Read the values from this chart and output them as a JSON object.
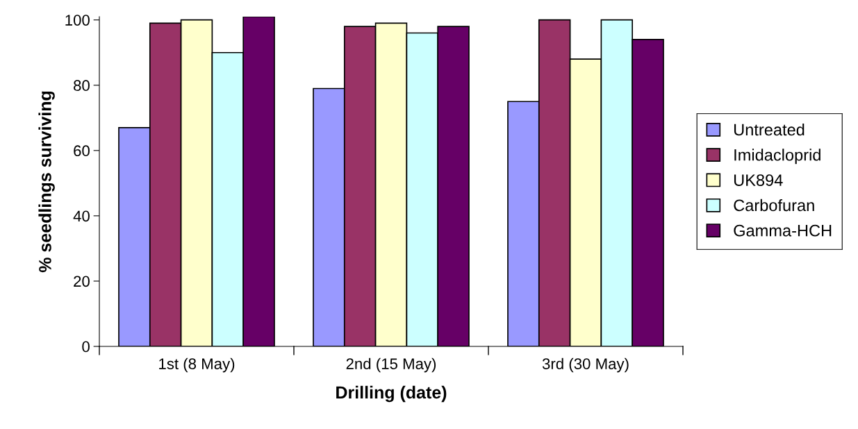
{
  "chart_data": {
    "type": "bar",
    "xlabel": "Drilling (date)",
    "ylabel": "% seedlings surviving",
    "categories": [
      "1st (8 May)",
      "2nd (15 May)",
      "3rd (30 May)"
    ],
    "series": [
      {
        "name": "Untreated",
        "color": "#9999ff",
        "values": [
          67,
          79,
          75
        ]
      },
      {
        "name": "Imidacloprid",
        "color": "#993366",
        "values": [
          99,
          98,
          100
        ]
      },
      {
        "name": "UK894",
        "color": "#ffffcc",
        "values": [
          100,
          99,
          88
        ]
      },
      {
        "name": "Carbofuran",
        "color": "#ccffff",
        "values": [
          90,
          96,
          100
        ]
      },
      {
        "name": "Gamma-HCH",
        "color": "#660066",
        "values": [
          101,
          98,
          94
        ]
      }
    ],
    "ylim": [
      0,
      101
    ],
    "yticks": [
      0,
      20,
      40,
      60,
      80,
      100
    ],
    "grid": false,
    "legend": "right"
  }
}
